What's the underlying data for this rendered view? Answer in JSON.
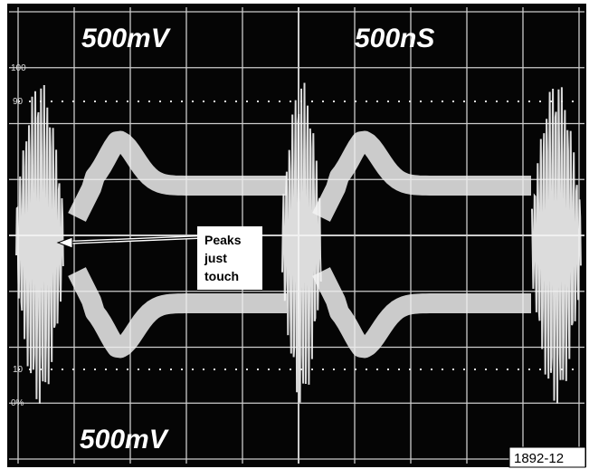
{
  "top_left_label": "500mV",
  "top_right_label": "500nS",
  "bottom_left_label": "500mV",
  "graticule_labels": [
    "100",
    "90",
    "10",
    "0%"
  ],
  "annotation": {
    "lines": [
      "Peaks",
      "just",
      "touch"
    ]
  },
  "figure_id": "1892-12"
}
